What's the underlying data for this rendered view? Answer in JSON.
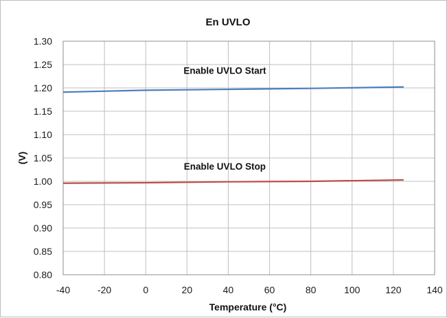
{
  "chart_data": {
    "type": "line",
    "title": "En UVLO",
    "xlabel": "Temperature (°C)",
    "ylabel": "(V)",
    "xlim": [
      -40,
      140
    ],
    "ylim": [
      0.8,
      1.3
    ],
    "x_ticks": [
      "-40",
      "-20",
      "0",
      "20",
      "40",
      "60",
      "80",
      "100",
      "120",
      "140"
    ],
    "y_ticks": [
      "0.80",
      "0.85",
      "0.90",
      "0.95",
      "1.00",
      "1.05",
      "1.10",
      "1.15",
      "1.20",
      "1.25",
      "1.30"
    ],
    "grid": true,
    "legend": "none",
    "series": [
      {
        "name": "Enable UVLO Start",
        "color": "#4a7ebb",
        "x": [
          -40,
          0,
          40,
          80,
          125
        ],
        "values": [
          1.191,
          1.195,
          1.197,
          1.199,
          1.202
        ]
      },
      {
        "name": "Enable UVLO Stop",
        "color": "#be4b48",
        "x": [
          -40,
          0,
          40,
          80,
          125
        ],
        "values": [
          0.996,
          0.997,
          0.999,
          1.0,
          1.003
        ]
      }
    ],
    "annotations": [
      {
        "text": "Enable UVLO Start",
        "x": 40,
        "y": 1.236
      },
      {
        "text": "Enable UVLO Stop",
        "x": 40,
        "y": 1.031
      }
    ]
  }
}
